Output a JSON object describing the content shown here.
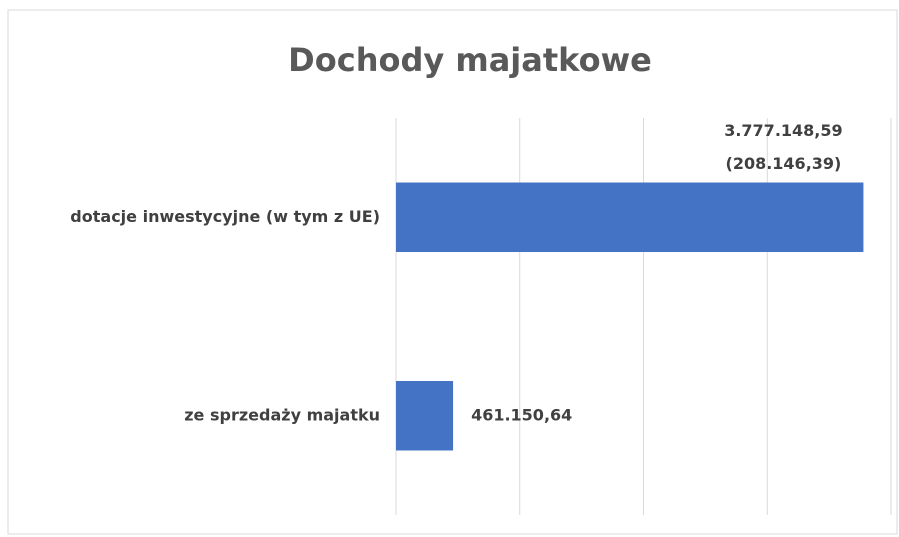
{
  "chart_data": {
    "type": "barh",
    "title": "Dochody majatkowe",
    "categories": [
      "dotacje inwestycyjne (w tym z UE)",
      "ze sprzedaży majatku"
    ],
    "values": [
      3777148.59,
      461150.64
    ],
    "value_labels": [
      "3.777.148,59",
      "461.150,64"
    ],
    "sub_labels": [
      "(208.146,39)",
      null
    ],
    "color": "#4472c4",
    "xlim": [
      0,
      4000000
    ],
    "xticks": [
      0,
      1000000,
      2000000,
      3000000,
      4000000
    ],
    "grid": true
  }
}
